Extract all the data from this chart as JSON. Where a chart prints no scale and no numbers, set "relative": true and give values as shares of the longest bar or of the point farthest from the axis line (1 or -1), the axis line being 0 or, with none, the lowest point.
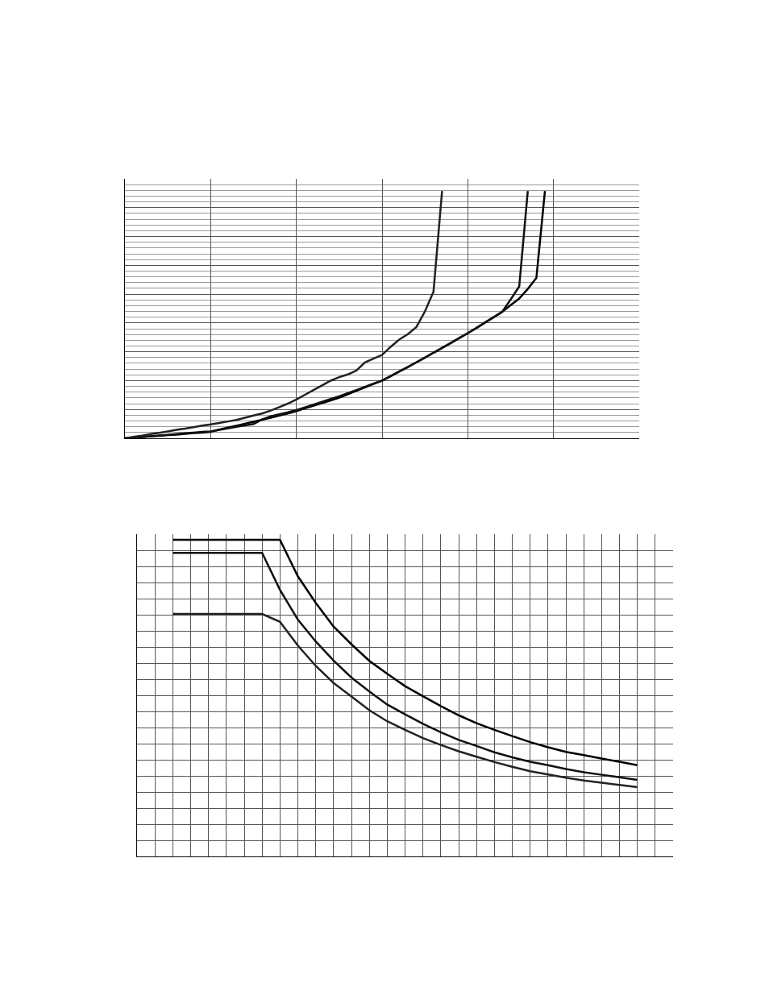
{
  "chart_data": [
    {
      "type": "line",
      "relative": true,
      "grid": true,
      "marker": "none",
      "line_style": "solid",
      "categories": [
        null,
        null,
        null,
        null,
        null,
        null,
        null,
        null,
        null,
        null,
        null,
        null,
        null,
        null,
        null,
        null,
        null,
        null,
        null,
        null,
        null,
        null,
        null,
        null,
        null,
        null,
        null,
        null,
        null,
        null,
        null,
        null,
        null,
        null,
        null,
        null,
        null,
        null,
        null,
        null,
        null,
        null,
        null,
        null,
        null,
        null,
        null,
        null,
        null,
        null
      ],
      "series": [
        {
          "color": "#000000",
          "values": [
            0,
            0.003,
            0.005,
            0.008,
            0.01,
            0.013,
            0.015,
            0.018,
            0.021,
            0.023,
            0.026,
            0.035,
            0.043,
            0.051,
            0.059,
            0.067,
            0.075,
            0.083,
            0.092,
            0.1,
            0.11,
            0.121,
            0.132,
            0.142,
            0.153,
            0.164,
            0.178,
            0.192,
            0.206,
            0.22,
            0.233,
            0.251,
            0.27,
            0.288,
            0.307,
            0.326,
            0.346,
            0.365,
            0.385,
            0.405,
            0.425,
            0.446,
            0.468,
            0.489,
            0.511,
            0.538,
            0.565,
            0.604,
            0.648,
            1
          ]
        },
        {
          "color": "#111111",
          "values": [
            0,
            0.003,
            0.006,
            0.008,
            0.011,
            0.014,
            0.017,
            0.02,
            0.023,
            0.026,
            0.028,
            0.034,
            0.04,
            0.046,
            0.052,
            0.058,
            0.076,
            0.089,
            0.097,
            0.105,
            0.114,
            0.125,
            0.136,
            0.148,
            0.159,
            0.17,
            0.183,
            0.195,
            0.208,
            0.221,
            0.233,
            0.251,
            0.27,
            0.288,
            0.307,
            0.326,
            0.346,
            0.365,
            0.385,
            0.405,
            0.425,
            0.446,
            0.468,
            0.489,
            0.511,
            0.561,
            0.614,
            1,
            null,
            null
          ]
        },
        {
          "color": "#222222",
          "values": [
            0,
            0.006,
            0.011,
            0.017,
            0.022,
            0.028,
            0.034,
            0.039,
            0.045,
            0.051,
            0.056,
            0.062,
            0.068,
            0.074,
            0.083,
            0.092,
            0.1,
            0.112,
            0.126,
            0.14,
            0.157,
            0.176,
            0.195,
            0.214,
            0.233,
            0.247,
            0.258,
            0.274,
            0.307,
            0.322,
            0.337,
            0.37,
            0.399,
            0.421,
            0.45,
            0.513,
            0.593,
            1,
            null,
            null,
            null,
            null,
            null,
            null,
            null,
            null,
            null,
            null,
            null,
            null
          ]
        }
      ]
    },
    {
      "type": "line",
      "relative": true,
      "grid": true,
      "marker": "none",
      "line_style": "solid",
      "categories": [
        null,
        null,
        null,
        null,
        null,
        null,
        null,
        null,
        null,
        null,
        null,
        null,
        null,
        null,
        null,
        null,
        null,
        null,
        null,
        null,
        null,
        null,
        null,
        null,
        null,
        null,
        null
      ],
      "series": [
        {
          "color": "#000000",
          "values": [
            1,
            1,
            1,
            1,
            1,
            1,
            1,
            0.885,
            0.801,
            0.726,
            0.67,
            0.618,
            0.577,
            0.538,
            0.506,
            0.475,
            0.446,
            0.421,
            0.4,
            0.38,
            0.361,
            0.345,
            0.33,
            0.32,
            0.309,
            0.299,
            0.288
          ]
        },
        {
          "color": "#111111",
          "values": [
            0.959,
            0.959,
            0.959,
            0.959,
            0.959,
            0.959,
            0.842,
            0.748,
            0.679,
            0.619,
            0.565,
            0.521,
            0.48,
            0.449,
            0.419,
            0.392,
            0.368,
            0.349,
            0.329,
            0.313,
            0.299,
            0.288,
            0.276,
            0.266,
            0.258,
            0.25,
            0.242
          ]
        },
        {
          "color": "#222222",
          "values": [
            0.766,
            0.766,
            0.766,
            0.766,
            0.766,
            0.766,
            0.741,
            0.666,
            0.602,
            0.548,
            0.505,
            0.462,
            0.427,
            0.4,
            0.374,
            0.352,
            0.332,
            0.315,
            0.298,
            0.283,
            0.269,
            0.259,
            0.249,
            0.24,
            0.233,
            0.226,
            0.219
          ]
        }
      ]
    }
  ]
}
